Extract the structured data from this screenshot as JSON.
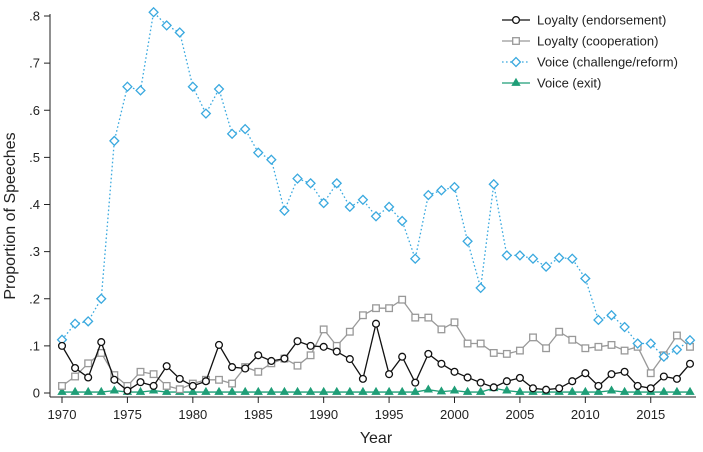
{
  "chart_data": {
    "type": "line",
    "title": "",
    "xlabel": "Year",
    "ylabel": "Proportion of Speeches",
    "xlim": [
      1970,
      2018
    ],
    "ylim": [
      0,
      0.8
    ],
    "xticks": [
      1970,
      1975,
      1980,
      1985,
      1990,
      1995,
      2000,
      2005,
      2010,
      2015
    ],
    "xtick_labels": [
      "1970",
      "1975",
      "1980",
      "1985",
      "1990",
      "1995",
      "2000",
      "2005",
      "2010",
      "2015"
    ],
    "yticks": [
      0,
      0.1,
      0.2,
      0.3,
      0.4,
      0.5,
      0.6,
      0.7,
      0.8
    ],
    "ytick_labels": [
      "0",
      ".1",
      ".2",
      ".3",
      ".4",
      ".5",
      ".6",
      ".7",
      ".8"
    ],
    "grid": false,
    "legend_position": "top-right",
    "x": [
      1970,
      1971,
      1972,
      1973,
      1974,
      1975,
      1976,
      1977,
      1978,
      1979,
      1980,
      1981,
      1982,
      1983,
      1984,
      1985,
      1986,
      1987,
      1988,
      1989,
      1990,
      1991,
      1992,
      1993,
      1994,
      1995,
      1996,
      1997,
      1998,
      1999,
      2000,
      2001,
      2002,
      2003,
      2004,
      2005,
      2006,
      2007,
      2008,
      2009,
      2010,
      2011,
      2012,
      2013,
      2014,
      2015,
      2016,
      2017,
      2018
    ],
    "series": [
      {
        "name": "Loyalty (endorsement)",
        "color": "#111111",
        "marker": "circle",
        "line_style": "solid",
        "values": [
          0.1,
          0.053,
          0.033,
          0.108,
          0.028,
          0.005,
          0.023,
          0.015,
          0.057,
          0.03,
          0.015,
          0.025,
          0.102,
          0.055,
          0.052,
          0.08,
          0.068,
          0.073,
          0.11,
          0.1,
          0.098,
          0.088,
          0.072,
          0.03,
          0.147,
          0.04,
          0.077,
          0.022,
          0.083,
          0.062,
          0.045,
          0.033,
          0.022,
          0.012,
          0.025,
          0.032,
          0.01,
          0.007,
          0.01,
          0.025,
          0.042,
          0.015,
          0.04,
          0.045,
          0.015,
          0.01,
          0.035,
          0.03,
          0.062
        ]
      },
      {
        "name": "Loyalty (cooperation)",
        "color": "#999999",
        "marker": "square",
        "line_style": "solid",
        "values": [
          0.015,
          0.035,
          0.063,
          0.085,
          0.038,
          0.015,
          0.045,
          0.04,
          0.015,
          0.008,
          0.02,
          0.028,
          0.028,
          0.02,
          0.055,
          0.045,
          0.063,
          0.073,
          0.058,
          0.08,
          0.135,
          0.1,
          0.13,
          0.165,
          0.18,
          0.18,
          0.198,
          0.16,
          0.16,
          0.135,
          0.15,
          0.105,
          0.105,
          0.085,
          0.083,
          0.09,
          0.118,
          0.095,
          0.13,
          0.113,
          0.095,
          0.098,
          0.102,
          0.09,
          0.098,
          0.042,
          0.08,
          0.122,
          0.098
        ]
      },
      {
        "name": "Voice (challenge/reform)",
        "color": "#3aa9df",
        "marker": "diamond",
        "line_style": "dotted",
        "values": [
          0.113,
          0.147,
          0.152,
          0.2,
          0.535,
          0.65,
          0.642,
          0.808,
          0.78,
          0.765,
          0.65,
          0.593,
          0.645,
          0.55,
          0.56,
          0.51,
          0.495,
          0.387,
          0.455,
          0.445,
          0.403,
          0.445,
          0.395,
          0.41,
          0.375,
          0.395,
          0.365,
          0.285,
          0.42,
          0.43,
          0.437,
          0.322,
          0.223,
          0.443,
          0.292,
          0.292,
          0.285,
          0.268,
          0.287,
          0.285,
          0.243,
          0.155,
          0.165,
          0.14,
          0.105,
          0.105,
          0.077,
          0.092,
          0.112
        ]
      },
      {
        "name": "Voice (exit)",
        "color": "#1f9e77",
        "marker": "triangle",
        "line_style": "solid",
        "values": [
          0.002,
          0.002,
          0.002,
          0.002,
          0.005,
          0.002,
          0.002,
          0.005,
          0.002,
          0.002,
          0.002,
          0.002,
          0.002,
          0.002,
          0.002,
          0.002,
          0.002,
          0.002,
          0.002,
          0.002,
          0.002,
          0.002,
          0.002,
          0.002,
          0.002,
          0.002,
          0.002,
          0.002,
          0.007,
          0.003,
          0.005,
          0.002,
          0.002,
          0.01,
          0.005,
          0.002,
          0.002,
          0.002,
          0.002,
          0.002,
          0.002,
          0.002,
          0.005,
          0.002,
          0.002,
          0.002,
          0.002,
          0.002,
          0.002
        ]
      }
    ]
  }
}
